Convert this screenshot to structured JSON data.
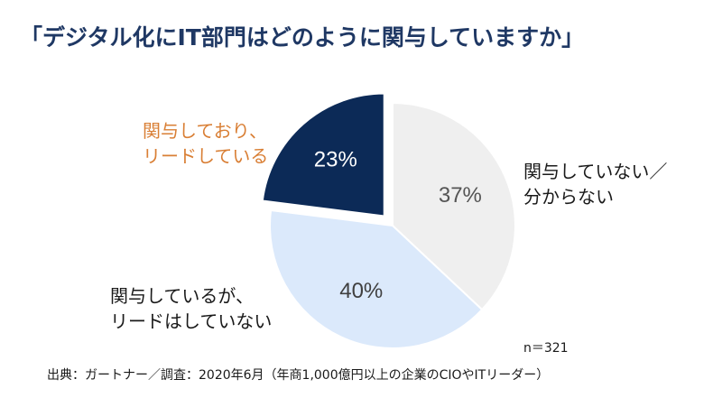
{
  "title": "「デジタル化にIT部門はどのように関与していますか」",
  "colors": {
    "title": "#1f3864",
    "slice_not_involved": "#efefef",
    "slice_involved_not_leading": "#dbe9fb",
    "slice_involved_leading": "#0c2a57",
    "label_highlight": "#d97f35",
    "text": "#1a1a1a"
  },
  "chart_data": {
    "type": "pie",
    "title": "「デジタル化にIT部門はどのように関与していますか」",
    "slices": [
      {
        "name": "関与していない／分からない",
        "label_lines": [
          "関与していない／",
          "分からない"
        ],
        "value": 37,
        "display": "37%",
        "color": "#efefef",
        "text_color": "#555555",
        "exploded": false
      },
      {
        "name": "関与しているが、リードはしていない",
        "label_lines": [
          "関与しているが、",
          "リードはしていない"
        ],
        "value": 40,
        "display": "40%",
        "color": "#dbe9fb",
        "text_color": "#404040",
        "exploded": false
      },
      {
        "name": "関与しており、リードしている",
        "label_lines": [
          "関与しており、",
          "リードしている"
        ],
        "value": 23,
        "display": "23%",
        "color": "#0c2a57",
        "text_color": "#ffffff",
        "exploded": true
      }
    ],
    "n_label": "n＝321"
  },
  "source": "出典：ガートナー／調査：2020年6月（年商1,000億円以上の企業のCIOやITリーダー）"
}
